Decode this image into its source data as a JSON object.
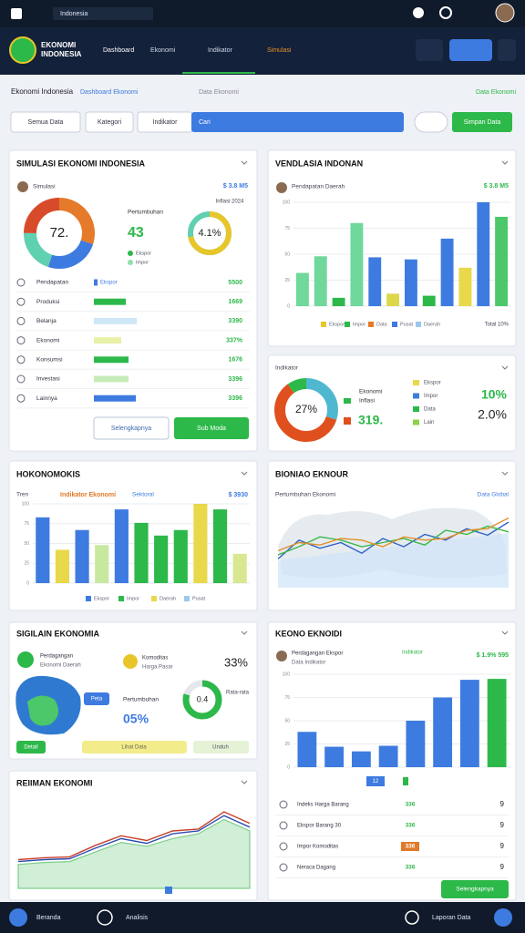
{
  "top_bar": {
    "search": "Indonesia"
  },
  "nav": {
    "brand": [
      "EKONOMI",
      "INDONESIA"
    ],
    "tabs": [
      "Dashboard",
      "Ekonomi",
      "Indikator",
      "Simulasi"
    ]
  },
  "breadcrumb": {
    "title": "Ekonomi Indonesia",
    "link": "Dashboard Ekonomi",
    "mid": "Data Ekonomi",
    "right": "Data Ekonomi"
  },
  "filters": {
    "buttons": [
      "Semua Data",
      "Kategori",
      "Indikator"
    ],
    "search": "Cari",
    "action": "Simpan Data"
  },
  "simulasi": {
    "title": "SIMULASI EKONOMI INDONESIA",
    "label": "Simulasi",
    "tag": "$ 3.8 M5",
    "donut": {
      "center": "72.",
      "values": [
        30,
        25,
        20,
        25
      ],
      "colors": [
        "#e57a2a",
        "#3d7be0",
        "#5fd0b0",
        "#d84b2a"
      ]
    },
    "stat_label": "Pertumbuhan",
    "stat": "43",
    "stat_legend": [
      {
        "name": "Ekspor",
        "color": "#2db84a"
      },
      {
        "name": "Impor",
        "color": "#8fe0a8"
      }
    ],
    "gauge": {
      "label": "Inflasi 2024",
      "value": "4.1%",
      "percent": 72,
      "colors": [
        "#e8c62a",
        "#5fd0b0"
      ]
    },
    "rows": [
      {
        "label": "Pendapatan",
        "bar": 8,
        "bar_label": "Ekspor",
        "color": "#3d7be0",
        "value": "5500"
      },
      {
        "label": "Produksi",
        "bar": 70,
        "color": "#2db84a",
        "value": "1669"
      },
      {
        "label": "Belanja",
        "bar": 94,
        "color": "#cfe6f7",
        "value": "3390"
      },
      {
        "label": "Ekonomi",
        "bar": 60,
        "color": "#e9f0a8",
        "value": "337%"
      },
      {
        "label": "Konsumsi",
        "bar": 76,
        "color": "#2db84a",
        "value": "1676"
      },
      {
        "label": "Investasi",
        "bar": 76,
        "color": "#c8ecb8",
        "value": "3396"
      },
      {
        "label": "Lainnya",
        "bar": 92,
        "color": "#3d7be0",
        "value": "3396"
      }
    ],
    "bar_max": 100,
    "buttons": [
      "Selengkapnya",
      "Sub Moda"
    ]
  },
  "vendlasia": {
    "title": "VENDLASIA INDONAN",
    "label": "Pendapatan Daerah",
    "tag": "$ 3.8 M5",
    "ylim": [
      0,
      100
    ],
    "yticks": [
      0,
      25,
      50,
      75,
      100
    ],
    "values": [
      32,
      48,
      8,
      80,
      47,
      12,
      45,
      10,
      65,
      37,
      100,
      86
    ],
    "colors": [
      "#6fd89a",
      "#6fd89a",
      "#2db84a",
      "#6fd89a",
      "#3d7be0",
      "#dcd84a",
      "#3d7be0",
      "#2db84a",
      "#3d7be0",
      "#e8d84a",
      "#3d7be0",
      "#4cc86a"
    ],
    "legend": [
      {
        "name": "Ekspor",
        "color": "#e8c62a"
      },
      {
        "name": "Impor",
        "color": "#2db84a"
      },
      {
        "name": "Data",
        "color": "#e57a2a"
      },
      {
        "name": "Pusat",
        "color": "#3d7be0"
      },
      {
        "name": "Daerah",
        "color": "#9cc8f0"
      }
    ],
    "legend_right": "Total 10%"
  },
  "ringkasan": {
    "label": "Indikator",
    "donut": {
      "center": "27%",
      "values": [
        30,
        60,
        10
      ],
      "colors": [
        "#4fb8d0",
        "#e0501e",
        "#2db84a"
      ]
    },
    "labels": [
      "Ekonomi",
      "Inflasi"
    ],
    "big": "319.",
    "legend": [
      {
        "name": "Ekspor",
        "color": "#e8d84a"
      },
      {
        "name": "Impor",
        "color": "#3d7be0"
      },
      {
        "name": "Data",
        "color": "#2db84a"
      },
      {
        "name": "Lain",
        "color": "#8fd04a"
      }
    ],
    "pct": [
      "10%",
      "2.0%"
    ]
  },
  "hokonomokis": {
    "title": "HOKONOMOKIS",
    "label": "Tren",
    "tag": "Indikator Ekonomi",
    "mid": "Sektoral",
    "right": "$ 3930",
    "ylim": [
      0,
      100
    ],
    "yticks": [
      0,
      25,
      50,
      75,
      100
    ],
    "values": [
      83,
      42,
      67,
      48,
      93,
      76,
      60,
      67,
      100,
      93,
      37
    ],
    "colors": [
      "#3d7be0",
      "#e8d84a",
      "#3d7be0",
      "#c8e8a0",
      "#3d7be0",
      "#2db84a",
      "#2db84a",
      "#2db84a",
      "#e8d84a",
      "#2db84a",
      "#d8e890"
    ],
    "legend": [
      {
        "name": "Ekspor",
        "color": "#3d7be0"
      },
      {
        "name": "Impor",
        "color": "#2db84a"
      },
      {
        "name": "Daerah",
        "color": "#e8d84a"
      },
      {
        "name": "Pusat",
        "color": "#9cc8f0"
      }
    ]
  },
  "bioniao": {
    "title": "BIONIAO EKNOUR",
    "label": "Pertumbuhan Ekonomi",
    "right": "Data Global",
    "ylim": [
      0,
      100
    ],
    "series": [
      {
        "color": "#2f62c8",
        "values": [
          35,
          58,
          48,
          55,
          42,
          60,
          50,
          65,
          58,
          72,
          64,
          80
        ]
      },
      {
        "color": "#3cb84a",
        "values": [
          40,
          50,
          62,
          58,
          50,
          55,
          60,
          52,
          70,
          65,
          75,
          68
        ]
      },
      {
        "color": "#e0902a",
        "values": [
          45,
          55,
          52,
          60,
          58,
          50,
          62,
          58,
          60,
          70,
          72,
          85
        ]
      }
    ]
  },
  "sigilain": {
    "title": "SIGILAIN EKONOMIA",
    "label": "Perdagangan",
    "sub": "Ekonomi Daerah",
    "coin_label": "Komoditas",
    "coin_sub": "Harga Pasar",
    "pct": "33%",
    "map_button": "Peta",
    "growth_label": "Pertumbuhan",
    "growth": "05%",
    "gauge": {
      "value": "0.4",
      "percent": 80,
      "colors": [
        "#2db84a",
        "#e4e8ee"
      ]
    },
    "gauge_sub": "Rata-rata",
    "buttons": [
      "Detail",
      "Lihat Data",
      "Unduh"
    ]
  },
  "keono": {
    "title": "KEONO EKNOIDI",
    "label": "Perdagangan Ekspor",
    "sub": "Data Indikator",
    "tag": "Indikator",
    "right": "$ 1.9% 595",
    "ylim": [
      0,
      100
    ],
    "yticks": [
      0,
      25,
      50,
      75,
      100
    ],
    "values": [
      38,
      22,
      17,
      23,
      50,
      75,
      94,
      95
    ],
    "colors": [
      "#3d7be0",
      "#3d7be0",
      "#3d7be0",
      "#3d7be0",
      "#3d7be0",
      "#3d7be0",
      "#3d7be0",
      "#2db84a"
    ],
    "legend": "12",
    "list": [
      {
        "label": "Indeks Harga Barang",
        "value": "336",
        "n": "9"
      },
      {
        "label": "Ekspor Barang 30",
        "value": "336",
        "n": "9"
      },
      {
        "label": "Impor Komoditas",
        "value": "336",
        "n": "9"
      },
      {
        "label": "Neraca Dagang",
        "value": "336",
        "n": "9"
      }
    ],
    "button": "Selengkapnya"
  },
  "reiiman": {
    "title": "REIIMAN EKONOMI",
    "ylim": [
      0,
      100
    ],
    "series": [
      {
        "color": "#c8402a",
        "values": [
          30,
          32,
          33,
          45,
          55,
          50,
          60,
          62,
          80,
          68
        ]
      },
      {
        "color": "#2f4fb0",
        "values": [
          28,
          30,
          31,
          42,
          52,
          47,
          57,
          60,
          76,
          64
        ]
      },
      {
        "color": "#7ccf8a",
        "values": [
          25,
          27,
          28,
          38,
          48,
          44,
          52,
          57,
          72,
          60
        ],
        "area": true
      }
    ]
  },
  "bottom_bar": {
    "left": "Beranda",
    "mid": "Analisis",
    "right": "Laporan Data"
  }
}
